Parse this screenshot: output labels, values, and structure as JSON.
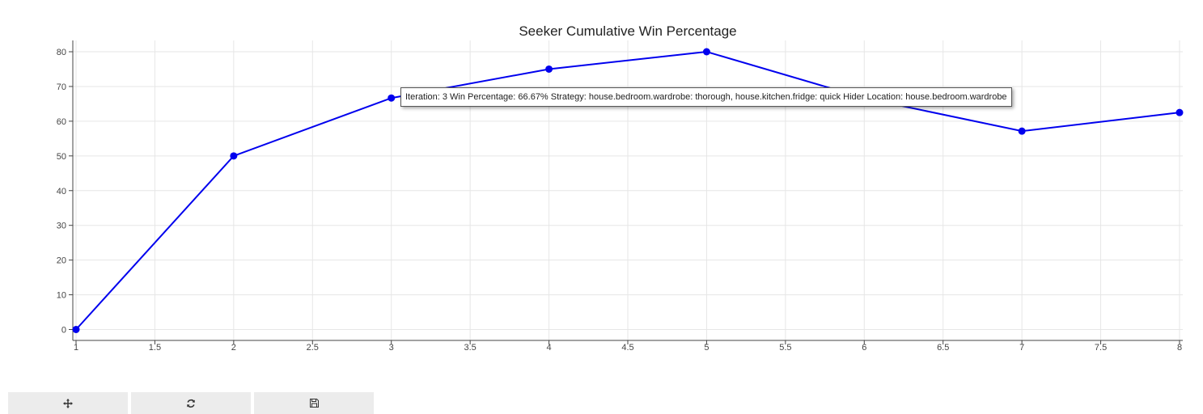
{
  "chart_data": {
    "type": "line",
    "title": "Seeker Cumulative Win Percentage",
    "xlabel": "",
    "ylabel": "",
    "x": [
      1,
      2,
      3,
      4,
      5,
      6,
      7,
      8
    ],
    "series": [
      {
        "values": [
          0,
          50,
          66.67,
          75,
          80,
          66.67,
          57.14,
          62.5
        ],
        "color": "#0000ee"
      }
    ],
    "xlim": [
      1,
      8
    ],
    "ylim": [
      -3,
      83
    ],
    "x_ticks": [
      1,
      1.5,
      2,
      2.5,
      3,
      3.5,
      4,
      4.5,
      5,
      5.5,
      6,
      6.5,
      7,
      7.5,
      8
    ],
    "y_ticks": [
      0,
      10,
      20,
      30,
      40,
      50,
      60,
      70,
      80
    ],
    "grid": true,
    "legend": "none"
  },
  "tooltip": {
    "text": "Iteration: 3 Win Percentage: 66.67% Strategy: house.bedroom.wardrobe: thorough, house.kitchen.fridge: quick Hider Location: house.bedroom.wardrobe"
  },
  "toolbar": {
    "buttons": [
      {
        "icon": "pan-icon"
      },
      {
        "icon": "reset-icon"
      },
      {
        "icon": "save-icon"
      }
    ]
  }
}
